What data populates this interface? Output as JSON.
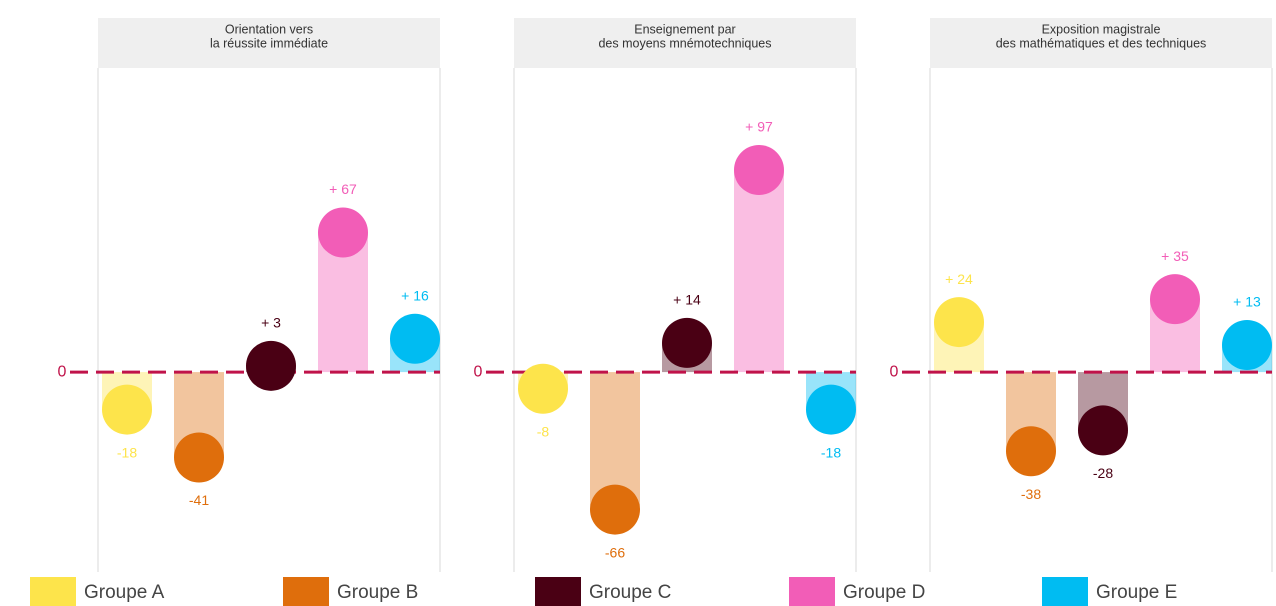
{
  "chart_data": [
    {
      "type": "bar",
      "title": [
        "Orientation vers",
        "la réussite immédiate"
      ],
      "values": [
        -18,
        -41,
        3,
        67,
        16
      ],
      "value_labels": [
        "-18",
        "-41",
        "+ 3",
        "+ 67",
        "+ 16"
      ],
      "ylim": [
        -95,
        145
      ],
      "yticks": [
        0
      ]
    },
    {
      "type": "bar",
      "title": [
        "Enseignement par",
        "des moyens mnémotechniques"
      ],
      "values": [
        -8,
        -66,
        14,
        97,
        -18
      ],
      "value_labels": [
        "-8",
        "-66",
        "+ 14",
        "+ 97",
        "-18"
      ],
      "ylim": [
        -95,
        145
      ],
      "yticks": [
        0
      ]
    },
    {
      "type": "bar",
      "title": [
        "Exposition magistrale",
        "des mathématiques et des techniques"
      ],
      "values": [
        24,
        -38,
        -28,
        35,
        13
      ],
      "value_labels": [
        "+ 24",
        "-38",
        "-28",
        "+ 35",
        "+ 13"
      ],
      "ylim": [
        -95,
        145
      ],
      "yticks": [
        0
      ]
    }
  ],
  "legend": [
    {
      "name": "Groupe A",
      "color": "#fde44b"
    },
    {
      "name": "Groupe B",
      "color": "#df6e0c"
    },
    {
      "name": "Groupe C",
      "color": "#4a0014"
    },
    {
      "name": "Groupe D",
      "color": "#f25db7"
    },
    {
      "name": "Groupe E",
      "color": "#00bcf2"
    }
  ]
}
